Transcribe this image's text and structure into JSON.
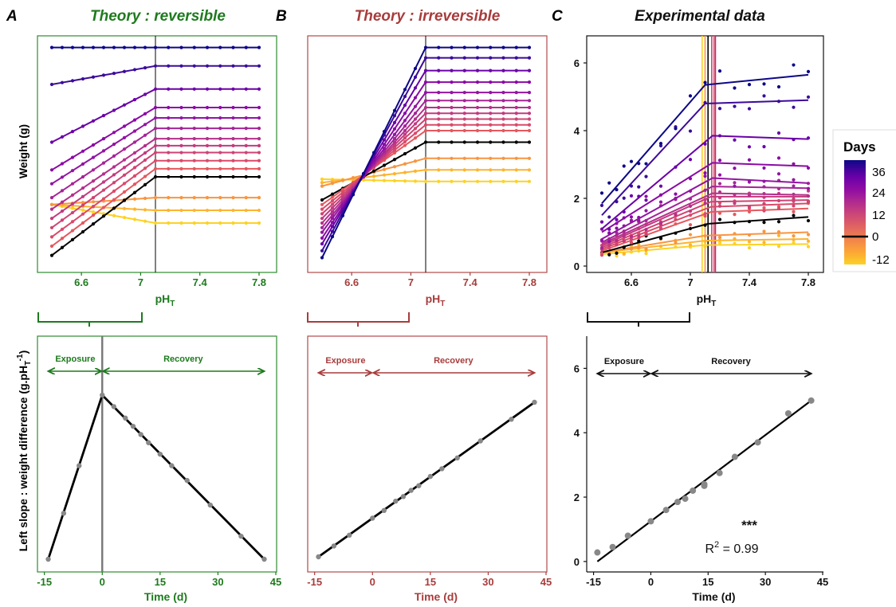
{
  "panels": {
    "A": {
      "letter": "A",
      "title": "Theory : reversible",
      "color": "#1e7a1e",
      "frame": "#2e8b2e"
    },
    "B": {
      "letter": "B",
      "title": "Theory : irreversible",
      "color": "#a83c3c",
      "frame": "#b24a4a"
    },
    "C": {
      "letter": "C",
      "title": "Experimental data",
      "color": "#111111",
      "frame": "#111111"
    }
  },
  "labels": {
    "ph_main": "pH",
    "ph_sub": "T",
    "weight_y": "Weight (g)",
    "slope_y": "Left slope : weight difference (g.pH",
    "slope_y_sub": "T",
    "slope_y_sup": "-1",
    "slope_y_end": ")",
    "time_x": "Time (d)",
    "exposure": "Exposure",
    "recovery": "Recovery",
    "stars": "***",
    "r2_label": "R",
    "r2_sup": "2",
    "r2_value": " = 0.99"
  },
  "legend": {
    "title": "Days",
    "ticks": [
      "36",
      "24",
      "12",
      "0",
      "-12"
    ],
    "colors": [
      "#fcd225",
      "#fca636",
      "#f2844b",
      "#e16462",
      "#cc4778",
      "#b12a90",
      "#8f0da4",
      "#6a00a8",
      "#41049d",
      "#0d0887"
    ]
  },
  "chart_data": [
    {
      "panel": "A",
      "type": "line",
      "title": "Theory : reversible",
      "xlabel": "pHT",
      "ylabel": "Weight (g)",
      "xlim": [
        6.4,
        7.8
      ],
      "ylim": [
        0,
        1
      ],
      "grid": false,
      "x_ticks": [
        6.6,
        7.0,
        7.4,
        7.8
      ],
      "breakpoint": 7.1,
      "y_ticks_shown": false,
      "series": [
        {
          "day": -14,
          "left": [
            0.28,
            0.2
          ],
          "right": 0.2,
          "color": "#fcd225"
        },
        {
          "day": -10,
          "left": [
            0.28,
            0.255
          ],
          "right": 0.255,
          "color": "#fdb42f"
        },
        {
          "day": -6,
          "left": [
            0.28,
            0.31
          ],
          "right": 0.31,
          "color": "#f89540"
        },
        {
          "day": 0,
          "left": [
            0.06,
            0.4
          ],
          "right": 0.4,
          "color": "#000000"
        },
        {
          "day": 3,
          "left": [
            0.1,
            0.435
          ],
          "right": 0.435,
          "color": "#e5585e"
        },
        {
          "day": 6,
          "left": [
            0.14,
            0.47
          ],
          "right": 0.47,
          "color": "#da4a6a"
        },
        {
          "day": 8,
          "left": [
            0.18,
            0.505
          ],
          "right": 0.505,
          "color": "#cf4373"
        },
        {
          "day": 10,
          "left": [
            0.22,
            0.535
          ],
          "right": 0.535,
          "color": "#c23b7f"
        },
        {
          "day": 12,
          "left": [
            0.26,
            0.565
          ],
          "right": 0.565,
          "color": "#b4308b"
        },
        {
          "day": 15,
          "left": [
            0.31,
            0.61
          ],
          "right": 0.61,
          "color": "#a52497"
        },
        {
          "day": 18,
          "left": [
            0.37,
            0.655
          ],
          "right": 0.655,
          "color": "#9215a2"
        },
        {
          "day": 22,
          "left": [
            0.43,
            0.7
          ],
          "right": 0.7,
          "color": "#8b0aa5"
        },
        {
          "day": 28,
          "left": [
            0.55,
            0.78
          ],
          "right": 0.78,
          "color": "#6a00a8"
        },
        {
          "day": 36,
          "left": [
            0.8,
            0.88
          ],
          "right": 0.88,
          "color": "#3c0b9a"
        },
        {
          "day": 42,
          "left": [
            0.96,
            0.96
          ],
          "right": 0.96,
          "color": "#0d0887"
        }
      ]
    },
    {
      "panel": "B",
      "type": "line",
      "title": "Theory : irreversible",
      "xlabel": "pHT",
      "ylabel": "",
      "xlim": [
        6.4,
        7.8
      ],
      "ylim": [
        0,
        1
      ],
      "grid": false,
      "x_ticks": [
        6.6,
        7.0,
        7.4,
        7.8
      ],
      "breakpoint": 7.1,
      "pivot_x": 6.6,
      "pivot_y": 0.36,
      "y_ticks_shown": false,
      "series": [
        {
          "day": -14,
          "left": [
            0.39,
            0.38
          ],
          "right": 0.38,
          "color": "#fcd225"
        },
        {
          "day": -10,
          "left": [
            0.375,
            0.43
          ],
          "right": 0.43,
          "color": "#fdb42f"
        },
        {
          "day": -6,
          "left": [
            0.36,
            0.48
          ],
          "right": 0.48,
          "color": "#f89540"
        },
        {
          "day": 0,
          "left": [
            0.3,
            0.55
          ],
          "right": 0.55,
          "color": "#000000"
        },
        {
          "day": 3,
          "left": [
            0.28,
            0.6
          ],
          "right": 0.6,
          "color": "#e5585e"
        },
        {
          "day": 6,
          "left": [
            0.26,
            0.625
          ],
          "right": 0.625,
          "color": "#da4a6a"
        },
        {
          "day": 8,
          "left": [
            0.24,
            0.65
          ],
          "right": 0.65,
          "color": "#cf4373"
        },
        {
          "day": 10,
          "left": [
            0.22,
            0.675
          ],
          "right": 0.675,
          "color": "#c23b7f"
        },
        {
          "day": 12,
          "left": [
            0.2,
            0.7
          ],
          "right": 0.7,
          "color": "#b4308b"
        },
        {
          "day": 15,
          "left": [
            0.18,
            0.73
          ],
          "right": 0.73,
          "color": "#a52497"
        },
        {
          "day": 18,
          "left": [
            0.16,
            0.765
          ],
          "right": 0.765,
          "color": "#9215a2"
        },
        {
          "day": 22,
          "left": [
            0.135,
            0.81
          ],
          "right": 0.81,
          "color": "#8b0aa5"
        },
        {
          "day": 28,
          "left": [
            0.11,
            0.86
          ],
          "right": 0.86,
          "color": "#6a00a8"
        },
        {
          "day": 36,
          "left": [
            0.08,
            0.915
          ],
          "right": 0.915,
          "color": "#3c0b9a"
        },
        {
          "day": 42,
          "left": [
            0.05,
            0.96
          ],
          "right": 0.96,
          "color": "#0d0887"
        }
      ]
    },
    {
      "panel": "C",
      "type": "scatter",
      "title": "Experimental data",
      "xlabel": "pHT",
      "ylabel": "",
      "xlim": [
        6.4,
        7.8
      ],
      "ylim": [
        0,
        6
      ],
      "grid": false,
      "x_ticks": [
        6.6,
        7.0,
        7.4,
        7.8
      ],
      "y_ticks": [
        0,
        2,
        4,
        6
      ],
      "breakpoints": [
        {
          "x": 7.08,
          "color": "#fcd225"
        },
        {
          "x": 7.1,
          "color": "#f89540"
        },
        {
          "x": 7.12,
          "color": "#000000"
        },
        {
          "x": 7.145,
          "color": "#cc4778"
        },
        {
          "x": 7.16,
          "color": "#e16462"
        },
        {
          "x": 7.17,
          "color": "#b12a90"
        }
      ],
      "series": [
        {
          "day": -14,
          "x": [
            6.4,
            7.1,
            7.8
          ],
          "y": [
            0.35,
            0.62,
            0.65
          ],
          "color": "#fcd225"
        },
        {
          "day": -10,
          "x": [
            6.4,
            7.1,
            7.8
          ],
          "y": [
            0.4,
            0.75,
            0.8
          ],
          "color": "#fdb42f"
        },
        {
          "day": -6,
          "x": [
            6.4,
            7.1,
            7.8
          ],
          "y": [
            0.4,
            0.9,
            1.0
          ],
          "color": "#f89540"
        },
        {
          "day": 0,
          "x": [
            6.4,
            7.12,
            7.8
          ],
          "y": [
            0.4,
            1.25,
            1.45
          ],
          "color": "#000000"
        },
        {
          "day": 3,
          "x": [
            6.4,
            7.14,
            7.8
          ],
          "y": [
            0.45,
            1.6,
            1.7
          ],
          "color": "#e5585e"
        },
        {
          "day": 6,
          "x": [
            6.4,
            7.14,
            7.8
          ],
          "y": [
            0.5,
            1.75,
            1.85
          ],
          "color": "#da4a6a"
        },
        {
          "day": 8,
          "x": [
            6.4,
            7.14,
            7.8
          ],
          "y": [
            0.55,
            1.9,
            1.95
          ],
          "color": "#cf4373"
        },
        {
          "day": 10,
          "x": [
            6.4,
            7.14,
            7.8
          ],
          "y": [
            0.6,
            2.05,
            2.05
          ],
          "color": "#c23b7f"
        },
        {
          "day": 12,
          "x": [
            6.4,
            7.15,
            7.8
          ],
          "y": [
            0.65,
            2.15,
            2.1
          ],
          "color": "#b4308b"
        },
        {
          "day": 15,
          "x": [
            6.4,
            7.15,
            7.8
          ],
          "y": [
            0.7,
            2.35,
            2.3
          ],
          "color": "#a52497"
        },
        {
          "day": 18,
          "x": [
            6.4,
            7.15,
            7.8
          ],
          "y": [
            0.8,
            2.6,
            2.45
          ],
          "color": "#9215a2"
        },
        {
          "day": 22,
          "x": [
            6.4,
            7.15,
            7.8
          ],
          "y": [
            1.0,
            3.05,
            2.95
          ],
          "color": "#8b0aa5"
        },
        {
          "day": 28,
          "x": [
            6.4,
            7.15,
            7.8
          ],
          "y": [
            1.1,
            3.85,
            3.75
          ],
          "color": "#6a00a8"
        },
        {
          "day": 36,
          "x": [
            6.4,
            7.1,
            7.8
          ],
          "y": [
            1.5,
            4.8,
            4.9
          ],
          "color": "#3c0b9a"
        },
        {
          "day": 42,
          "x": [
            6.4,
            7.1,
            7.8
          ],
          "y": [
            1.85,
            5.35,
            5.65
          ],
          "color": "#0d0887"
        }
      ]
    },
    {
      "panel": "A2",
      "type": "line",
      "xlabel": "Time (d)",
      "ylabel": "Left slope : weight difference (g.pHT-1)",
      "xlim": [
        -17,
        45
      ],
      "ylim": [
        0,
        1
      ],
      "grid": false,
      "x_ticks": [
        -15,
        0,
        15,
        30,
        45
      ],
      "line_x": [
        -14,
        0,
        42
      ],
      "line_y": [
        0.0,
        1.0,
        0.0
      ],
      "points_x": [
        -14,
        -10,
        -6,
        0,
        3,
        6,
        8,
        10,
        12,
        15,
        18,
        22,
        28,
        36,
        42
      ],
      "points_y": [
        0.0,
        0.28,
        0.57,
        1.0,
        0.93,
        0.86,
        0.81,
        0.76,
        0.71,
        0.64,
        0.57,
        0.48,
        0.33,
        0.14,
        0.0
      ],
      "annotations": [
        "Exposure",
        "Recovery"
      ]
    },
    {
      "panel": "B2",
      "type": "line",
      "xlabel": "Time (d)",
      "ylabel": "",
      "xlim": [
        -17,
        45
      ],
      "ylim": [
        0,
        1
      ],
      "grid": false,
      "x_ticks": [
        -15,
        0,
        15,
        30,
        45
      ],
      "line_x": [
        -14,
        42
      ],
      "line_y": [
        0.0,
        1.0
      ],
      "points_x": [
        -14,
        -10,
        -6,
        0,
        3,
        6,
        8,
        10,
        12,
        15,
        18,
        22,
        28,
        36,
        42
      ],
      "points_y": [
        0.0,
        0.07,
        0.14,
        0.25,
        0.3,
        0.36,
        0.39,
        0.43,
        0.46,
        0.52,
        0.57,
        0.64,
        0.75,
        0.89,
        1.0
      ],
      "annotations": [
        "Exposure",
        "Recovery"
      ]
    },
    {
      "panel": "C2",
      "type": "scatter",
      "xlabel": "Time (d)",
      "ylabel": "",
      "xlim": [
        -17,
        45
      ],
      "ylim": [
        -0.3,
        7
      ],
      "grid": false,
      "x_ticks": [
        -15,
        0,
        15,
        30,
        45
      ],
      "y_ticks": [
        0,
        2,
        4,
        6
      ],
      "fit_x": [
        -14,
        42
      ],
      "fit_y": [
        0.0,
        5.0
      ],
      "points_x": [
        -14,
        -10,
        -6,
        0,
        4,
        7,
        9,
        11,
        14,
        14,
        18,
        22,
        28,
        36,
        42
      ],
      "points_y": [
        0.28,
        0.45,
        0.8,
        1.25,
        1.6,
        1.85,
        1.95,
        2.2,
        2.35,
        2.4,
        2.75,
        3.25,
        3.7,
        4.6,
        5.0
      ],
      "annotations": [
        "Exposure",
        "Recovery",
        "***",
        "R2 = 0.99"
      ]
    }
  ]
}
